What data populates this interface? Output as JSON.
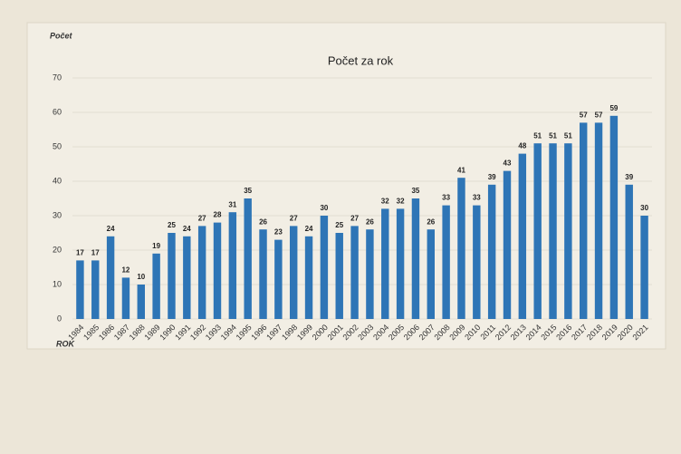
{
  "chart_data": {
    "type": "bar",
    "title": "Počet za rok",
    "y_label": "Počet",
    "x_label": "ROK",
    "categories": [
      "1984",
      "1985",
      "1986",
      "1987",
      "1988",
      "1989",
      "1990",
      "1991",
      "1992",
      "1993",
      "1994",
      "1995",
      "1996",
      "1997",
      "1998",
      "1999",
      "2000",
      "2001",
      "2002",
      "2003",
      "2004",
      "2005",
      "2006",
      "2007",
      "2008",
      "2009",
      "2010",
      "2011",
      "2012",
      "2013",
      "2014",
      "2015",
      "2016",
      "2017",
      "2018",
      "2019",
      "2020",
      "2021"
    ],
    "values": [
      17,
      17,
      24,
      12,
      10,
      19,
      25,
      24,
      27,
      28,
      31,
      35,
      26,
      23,
      27,
      24,
      30,
      25,
      27,
      26,
      32,
      32,
      35,
      26,
      33,
      41,
      33,
      39,
      43,
      48,
      51,
      51,
      51,
      57,
      57,
      59,
      39,
      30
    ],
    "color": "#2e75b6",
    "ylim": [
      0,
      70
    ],
    "yticks": [
      0,
      10,
      20,
      30,
      40,
      50,
      60,
      70
    ],
    "grid": true
  }
}
